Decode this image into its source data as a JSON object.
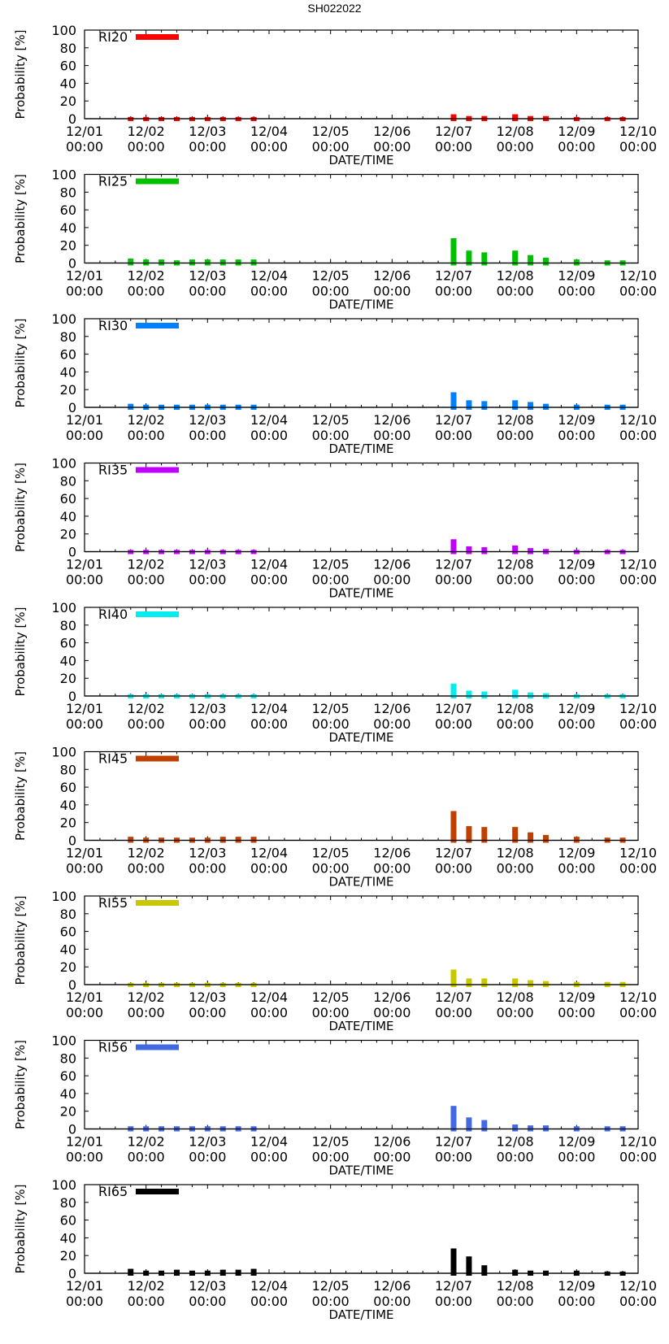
{
  "page_title": "SH022022",
  "chart_data": {
    "type": "bar",
    "title": "SH022022",
    "xlabel": "DATE/TIME",
    "ylabel": "Probability [%]",
    "ylim": [
      0,
      100
    ],
    "yticks": [
      "0",
      "20",
      "40",
      "60",
      "80",
      "100"
    ],
    "x_range_hours": [
      0,
      216
    ],
    "x_origin": "12/01 00:00",
    "xticks": [
      {
        "date": "12/01",
        "time": "00:00",
        "hour": 0
      },
      {
        "date": "12/02",
        "time": "00:00",
        "hour": 24
      },
      {
        "date": "12/03",
        "time": "00:00",
        "hour": 48
      },
      {
        "date": "12/04",
        "time": "00:00",
        "hour": 72
      },
      {
        "date": "12/05",
        "time": "00:00",
        "hour": 96
      },
      {
        "date": "12/06",
        "time": "00:00",
        "hour": 120
      },
      {
        "date": "12/07",
        "time": "00:00",
        "hour": 144
      },
      {
        "date": "12/08",
        "time": "00:00",
        "hour": 168
      },
      {
        "date": "12/09",
        "time": "00:00",
        "hour": 192
      },
      {
        "date": "12/10",
        "time": "00:00",
        "hour": 216
      }
    ],
    "x_hours": [
      18,
      24,
      30,
      36,
      42,
      48,
      54,
      60,
      66,
      144,
      150,
      156,
      168,
      174,
      180,
      192,
      204,
      210
    ],
    "grid": false,
    "legend_position": "top-left",
    "series": [
      {
        "name": "RI20",
        "color": "#ff0000",
        "values": [
          2,
          2,
          2,
          2,
          2,
          2,
          2,
          2,
          2,
          5,
          3,
          3,
          5,
          3,
          3,
          2,
          2,
          2
        ]
      },
      {
        "name": "RI25",
        "color": "#00c000",
        "values": [
          5,
          4,
          4,
          3,
          4,
          4,
          4,
          4,
          4,
          28,
          14,
          12,
          14,
          9,
          6,
          4,
          3,
          3
        ]
      },
      {
        "name": "RI30",
        "color": "#0080ff",
        "values": [
          4,
          3,
          3,
          3,
          3,
          3,
          3,
          3,
          3,
          17,
          8,
          7,
          8,
          6,
          4,
          3,
          3,
          3
        ]
      },
      {
        "name": "RI35",
        "color": "#c000ff",
        "values": [
          2,
          2,
          2,
          2,
          2,
          2,
          2,
          2,
          2,
          14,
          6,
          5,
          7,
          4,
          3,
          2,
          2,
          2
        ]
      },
      {
        "name": "RI40",
        "color": "#00eeee",
        "values": [
          2,
          2,
          2,
          2,
          2,
          2,
          2,
          2,
          2,
          14,
          6,
          5,
          7,
          4,
          3,
          2,
          2,
          2
        ]
      },
      {
        "name": "RI45",
        "color": "#c04000",
        "values": [
          4,
          3,
          3,
          3,
          3,
          3,
          4,
          4,
          4,
          33,
          16,
          15,
          15,
          9,
          6,
          4,
          3,
          3
        ]
      },
      {
        "name": "RI55",
        "color": "#c8c800",
        "values": [
          2,
          2,
          2,
          2,
          2,
          2,
          2,
          2,
          2,
          17,
          7,
          7,
          7,
          5,
          4,
          3,
          3,
          3
        ]
      },
      {
        "name": "RI56",
        "color": "#4169e1",
        "values": [
          3,
          3,
          3,
          3,
          3,
          3,
          3,
          3,
          3,
          26,
          13,
          10,
          5,
          4,
          4,
          3,
          3,
          3
        ]
      },
      {
        "name": "RI65",
        "color": "#000000",
        "values": [
          5,
          3,
          3,
          4,
          3,
          3,
          4,
          4,
          5,
          28,
          19,
          9,
          4,
          3,
          3,
          3,
          2,
          2
        ]
      }
    ]
  }
}
